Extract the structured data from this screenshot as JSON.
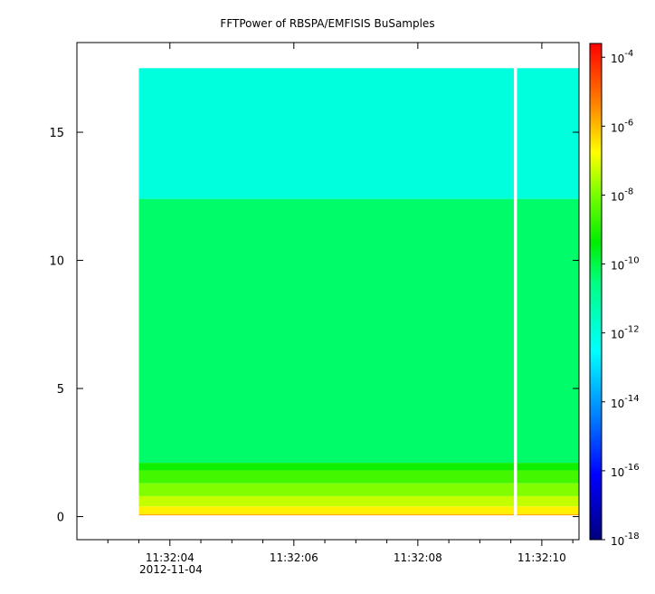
{
  "chart_data": {
    "type": "heatmap",
    "title": "FFTPower of RBSPA/EMFISIS  BuSamples",
    "xlabel": "",
    "ylabel": "",
    "x": {
      "ticks": [
        {
          "value": 4,
          "label": "11:32:04"
        },
        {
          "value": 6,
          "label": "11:32:06"
        },
        {
          "value": 8,
          "label": "11:32:08"
        },
        {
          "value": 10,
          "label": "11:32:10"
        }
      ],
      "minor_ticks": [
        3.0,
        3.5,
        4.5,
        5.0,
        5.5,
        6.5,
        7.0,
        7.5,
        8.5,
        9.0,
        9.5,
        10.5
      ],
      "date_label": "2012-11-04",
      "range_seconds": [
        2.5,
        10.6
      ]
    },
    "y": {
      "ticks": [
        {
          "value": 0,
          "label": "0"
        },
        {
          "value": 5,
          "label": "5"
        },
        {
          "value": 10,
          "label": "10"
        },
        {
          "value": 15,
          "label": "15"
        }
      ],
      "range": [
        -0.9,
        18.5
      ]
    },
    "colorbar": {
      "scale": "log",
      "range_exponent": [
        -18,
        -3.6
      ],
      "ticks": [
        {
          "exponent": -4,
          "label_base": "10",
          "label_exp": "-4"
        },
        {
          "exponent": -6,
          "label_base": "10",
          "label_exp": "-6"
        },
        {
          "exponent": -8,
          "label_base": "10",
          "label_exp": "-8"
        },
        {
          "exponent": -10,
          "label_base": "10",
          "label_exp": "-10"
        },
        {
          "exponent": -12,
          "label_base": "10",
          "label_exp": "-12"
        },
        {
          "exponent": -14,
          "label_base": "10",
          "label_exp": "-14"
        },
        {
          "exponent": -16,
          "label_base": "10",
          "label_exp": "-16"
        },
        {
          "exponent": -18,
          "label_base": "10",
          "label_exp": "-18"
        }
      ]
    },
    "data_extent": {
      "x_start_seconds": 3.5,
      "x_end_seconds": 10.6,
      "y_min": 0.05,
      "y_max": 17.5
    },
    "gap_seconds": [
      9.55,
      9.6
    ],
    "bands": [
      {
        "y_from": 0.0,
        "y_to": 0.1,
        "log_power": -5.8
      },
      {
        "y_from": 0.1,
        "y_to": 0.4,
        "log_power": -6.6
      },
      {
        "y_from": 0.4,
        "y_to": 0.8,
        "log_power": -7.3
      },
      {
        "y_from": 0.8,
        "y_to": 1.3,
        "log_power": -7.9
      },
      {
        "y_from": 1.3,
        "y_to": 1.8,
        "log_power": -8.6
      },
      {
        "y_from": 1.8,
        "y_to": 2.1,
        "log_power": -9.2
      },
      {
        "y_from": 2.1,
        "y_to": 12.4,
        "log_power": -10.3
      },
      {
        "y_from": 12.4,
        "y_to": 17.5,
        "log_power": -12.0
      }
    ]
  }
}
